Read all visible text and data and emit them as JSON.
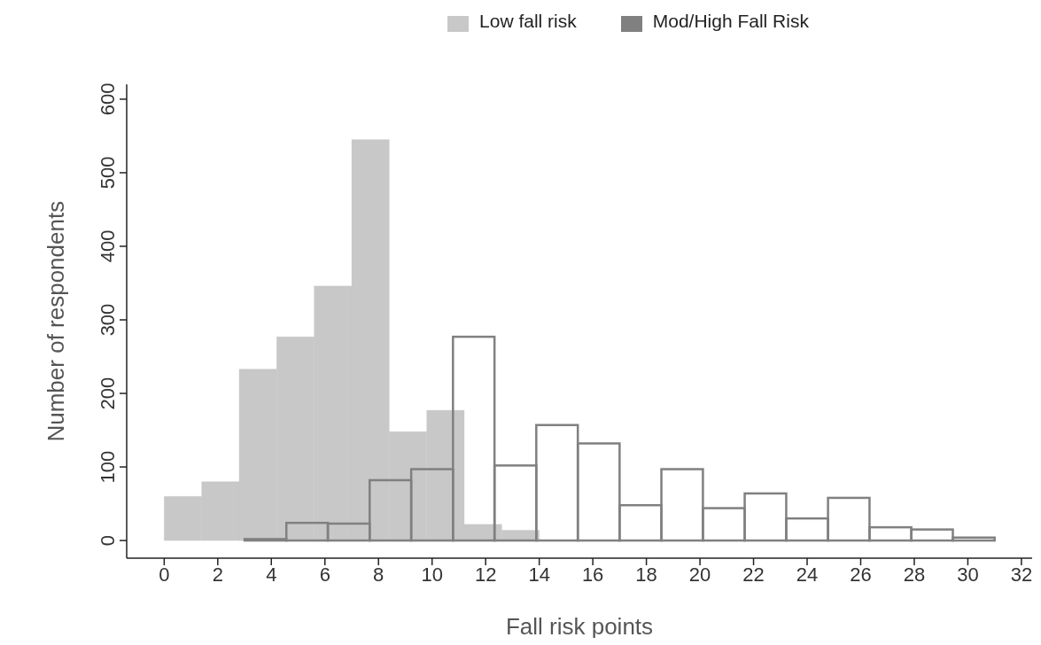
{
  "chart_data": {
    "type": "histogram",
    "xlabel": "Fall risk points",
    "ylabel": "Number of respondents",
    "xlim": [
      -1.4,
      32.4
    ],
    "xticks": [
      0,
      2,
      4,
      6,
      8,
      10,
      12,
      14,
      16,
      18,
      20,
      22,
      24,
      26,
      28,
      30,
      32
    ],
    "ylim": [
      -24,
      620
    ],
    "yticks": [
      0,
      100,
      200,
      300,
      400,
      500,
      600
    ],
    "legend": "top",
    "grid": false,
    "bins": [
      0,
      1.4,
      2.8,
      4.2,
      5.6,
      7,
      8.4,
      9.8,
      11.2,
      12.6,
      14
    ],
    "series": [
      {
        "name": "Low fall risk",
        "color": "#c8c8c8",
        "values": [
          60,
          80,
          233,
          277,
          346,
          545,
          148,
          177,
          22,
          14
        ]
      },
      {
        "name": "Mod/High Fall Risk",
        "color": "#808080",
        "bins": [
          3,
          4.56,
          6.11,
          7.67,
          9.22,
          10.78,
          12.33,
          13.89,
          15.44,
          17,
          18.56,
          20.11,
          21.67,
          23.22,
          24.78,
          26.33,
          27.89,
          29.44,
          31
        ],
        "values": [
          2,
          24,
          23,
          82,
          97,
          277,
          102,
          157,
          132,
          48,
          97,
          44,
          64,
          30,
          58,
          18,
          15,
          4
        ]
      }
    ]
  }
}
